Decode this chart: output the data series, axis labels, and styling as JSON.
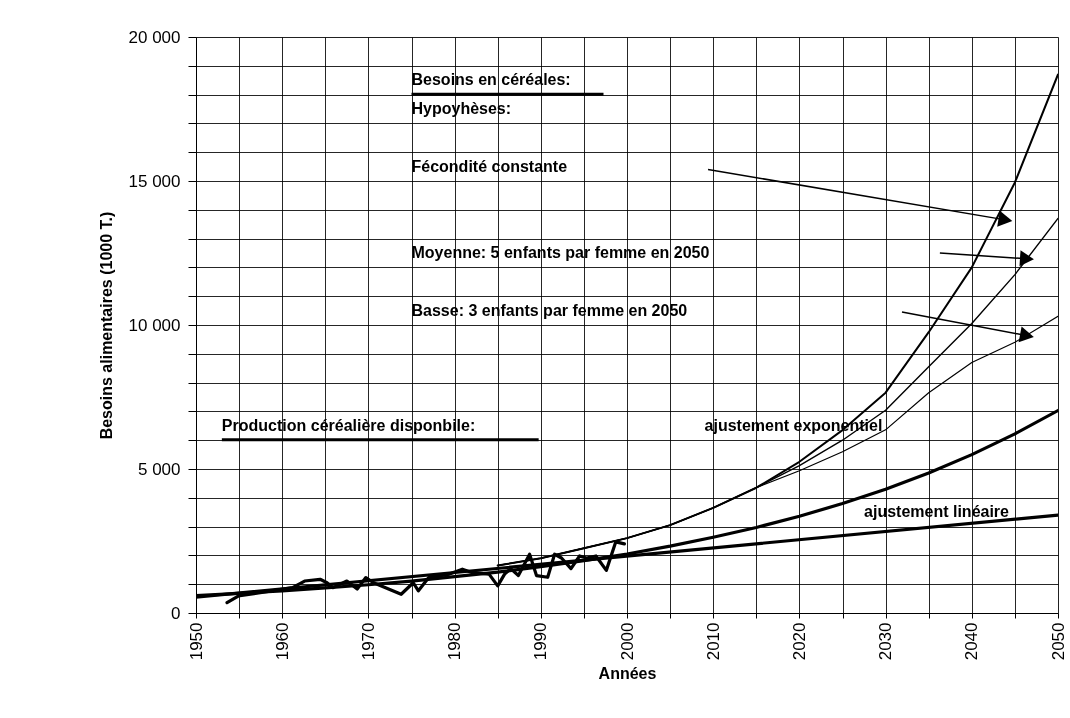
{
  "chart_data": {
    "type": "line",
    "xlabel": "Années",
    "ylabel": "Besoins alimentaires (1000 T.)",
    "xlim": [
      1950,
      2050
    ],
    "ylim": [
      0,
      20000
    ],
    "xticks": [
      1950,
      {
        "value": 1955,
        "label": null
      },
      1960,
      {
        "value": 1965,
        "label": null
      },
      1970,
      {
        "value": 1975,
        "label": null
      },
      1980,
      {
        "value": 1985,
        "label": null
      },
      1990,
      {
        "value": 1995,
        "label": null
      },
      2000,
      {
        "value": 2005,
        "label": null
      },
      2010,
      {
        "value": 2015,
        "label": null
      },
      2020,
      {
        "value": 2025,
        "label": null
      },
      2030,
      {
        "value": 2035,
        "label": null
      },
      2040,
      {
        "value": 2045,
        "label": null
      },
      2050
    ],
    "yticks": [
      {
        "value": 0,
        "label": "0"
      },
      {
        "value": 1000,
        "label": null
      },
      {
        "value": 2000,
        "label": null
      },
      {
        "value": 3000,
        "label": null
      },
      {
        "value": 4000,
        "label": null
      },
      {
        "value": 5000,
        "label": "5 000"
      },
      {
        "value": 6000,
        "label": null
      },
      {
        "value": 7000,
        "label": null
      },
      {
        "value": 8000,
        "label": null
      },
      {
        "value": 9000,
        "label": null
      },
      {
        "value": 10000,
        "label": "10 000"
      },
      {
        "value": 11000,
        "label": null
      },
      {
        "value": 12000,
        "label": null
      },
      {
        "value": 13000,
        "label": null
      },
      {
        "value": 14000,
        "label": null
      },
      {
        "value": 15000,
        "label": "15 000"
      },
      {
        "value": 16000,
        "label": null
      },
      {
        "value": 17000,
        "label": null
      },
      {
        "value": 18000,
        "label": null
      },
      {
        "value": 19000,
        "label": null
      },
      {
        "value": 20000,
        "label": "20 000"
      }
    ],
    "grid": true,
    "marker": "none",
    "line_style": "solid",
    "series": [
      {
        "color": "#000000",
        "x": [
          1953.6,
          1954.9,
          1961.2,
          1962.6,
          1964.4,
          1965.2,
          1965.9,
          1967.5,
          1968.7,
          1969.7,
          1970.6,
          1973.8,
          1975.2,
          1975.8,
          1977.0,
          1979.4,
          1980.9,
          1982.1,
          1984.0,
          1985.0,
          1985.8,
          1986.5,
          1987.4,
          1988.7,
          1989.5,
          1990.8,
          1991.6,
          1992.4,
          1993.5,
          1994.5,
          1995.3,
          1996.4,
          1997.6,
          1998.7,
          1999.7
        ],
        "values": [
          360,
          590,
          880,
          1110,
          1170,
          1050,
          880,
          1110,
          830,
          1230,
          1050,
          650,
          1050,
          770,
          1230,
          1350,
          1520,
          1400,
          1350,
          940,
          1350,
          1540,
          1300,
          2040,
          1300,
          1240,
          2040,
          1910,
          1540,
          1980,
          1910,
          1980,
          1480,
          2470,
          2400
        ]
      },
      {
        "color": "#000000",
        "x": [
          1950,
          1955,
          1960,
          1965,
          1970,
          1975,
          1980,
          1985,
          1990,
          1995,
          2000,
          2005,
          2010,
          2015,
          2020,
          2025,
          2030,
          2035,
          2040,
          2045,
          2050
        ],
        "values": [
          600,
          680,
          770,
          870,
          980,
          1110,
          1260,
          1420,
          1610,
          1820,
          2050,
          2320,
          2630,
          2970,
          3360,
          3800,
          4300,
          4860,
          5500,
          6220,
          7030
        ]
      },
      {
        "color": "#000000",
        "x": [
          1950,
          2050
        ],
        "values": [
          550,
          3400
        ]
      },
      {
        "color": "#000000",
        "x": [
          1985,
          1990,
          1995,
          2000,
          2005,
          2010,
          2015,
          2020,
          2025,
          2030,
          2035,
          2040,
          2045,
          2050
        ],
        "values": [
          1650,
          1900,
          2250,
          2600,
          3050,
          3650,
          4350,
          5250,
          6350,
          7650,
          9750,
          12000,
          14950,
          18700
        ]
      },
      {
        "color": "#000000",
        "x": [
          1985,
          1990,
          1995,
          2000,
          2005,
          2010,
          2015,
          2020,
          2025,
          2030,
          2035,
          2040,
          2045,
          2050
        ],
        "values": [
          1650,
          1900,
          2250,
          2600,
          3050,
          3650,
          4350,
          5120,
          6000,
          7040,
          8550,
          10050,
          11750,
          13700
        ]
      },
      {
        "color": "#000000",
        "x": [
          1985,
          1990,
          1995,
          2000,
          2005,
          2010,
          2015,
          2020,
          2025,
          2030,
          2035,
          2040,
          2045,
          2050
        ],
        "values": [
          1650,
          1900,
          2250,
          2600,
          3050,
          3650,
          4350,
          4940,
          5600,
          6360,
          7650,
          8700,
          9400,
          10300
        ]
      }
    ],
    "annotations": [
      "Besoins en céréales:",
      "Hypoyhèses:",
      "Fécondité constante",
      "Moyenne: 5 enfants par femme en 2050",
      "Basse: 3 enfants par femme en 2050",
      "Production céréalière disponbile:",
      "ajustement exponentiel",
      "ajustement linéaire"
    ]
  }
}
